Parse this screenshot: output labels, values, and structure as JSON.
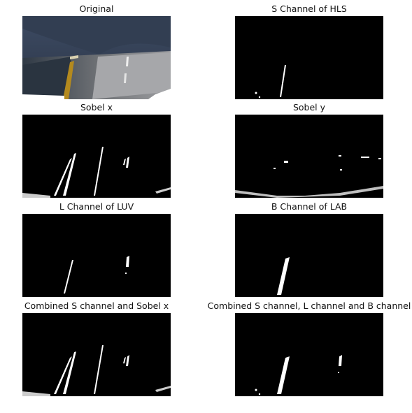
{
  "figure": {
    "panels": [
      {
        "title": "Original"
      },
      {
        "title": "S Channel of HLS"
      },
      {
        "title": "Sobel x"
      },
      {
        "title": "Sobel y"
      },
      {
        "title": "L Channel of LUV"
      },
      {
        "title": "B Channel of LAB"
      },
      {
        "title": "Combined S channel and Sobel x"
      },
      {
        "title": "Combined S channel, L channel and B channel"
      }
    ]
  }
}
